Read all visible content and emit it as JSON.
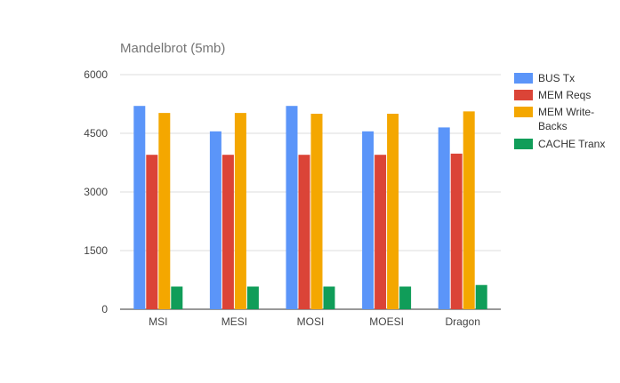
{
  "chart_data": {
    "type": "bar",
    "title": "Mandelbrot (5mb)",
    "xlabel": "",
    "ylabel": "",
    "categories": [
      "MSI",
      "MESI",
      "MOSI",
      "MOESI",
      "Dragon"
    ],
    "yticks": [
      "0",
      "1500",
      "3000",
      "4500",
      "6000"
    ],
    "ylim": [
      0,
      6000
    ],
    "grid": true,
    "legend_position": "right",
    "series": [
      {
        "name": "BUS Tx",
        "color": "#5B95F9",
        "values": [
          5200,
          4550,
          5200,
          4550,
          4650
        ]
      },
      {
        "name": "MEM Reqs",
        "color": "#DB4437",
        "values": [
          3950,
          3950,
          3950,
          3950,
          3980
        ]
      },
      {
        "name": "MEM Write-Backs",
        "legend_lines": [
          "MEM Write-",
          "Backs"
        ],
        "color": "#F4A700",
        "values": [
          5020,
          5020,
          5000,
          5000,
          5060
        ]
      },
      {
        "name": "CACHE Tranx",
        "color": "#109D59",
        "values": [
          580,
          580,
          580,
          580,
          620
        ]
      }
    ]
  }
}
